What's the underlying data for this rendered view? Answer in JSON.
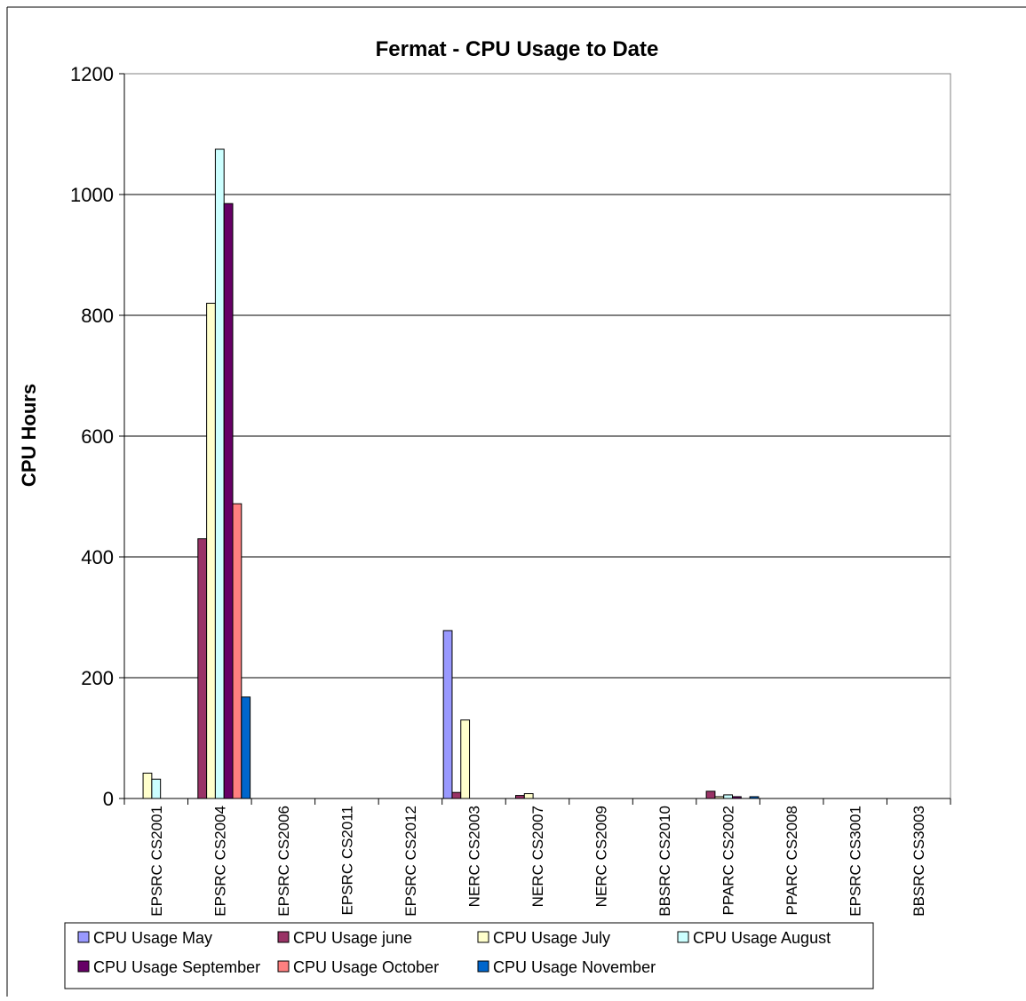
{
  "chart_data": {
    "type": "bar",
    "title": "Fermat - CPU Usage to Date",
    "xlabel": "",
    "ylabel": "CPU Hours",
    "ylim": [
      0,
      1200
    ],
    "yticks": [
      0,
      200,
      400,
      600,
      800,
      1000,
      1200
    ],
    "grid": true,
    "legend_position": "bottom",
    "categories": [
      "EPSRC CS2001",
      "EPSRC CS2004",
      "EPSRC CS2006",
      "EPSRC CS2011",
      "EPSRC CS2012",
      "NERC CS2003",
      "NERC CS2007",
      "NERC CS2009",
      "BBSRC CS2010",
      "PPARC CS2002",
      "PPARC CS2008",
      "EPSRC CS3001",
      "BBSRC CS3003"
    ],
    "series": [
      {
        "name": "CPU Usage May",
        "color": "#9999FF",
        "values": [
          0,
          0,
          0,
          0,
          0,
          278,
          0,
          0,
          0,
          0,
          0,
          0,
          0
        ]
      },
      {
        "name": "CPU Usage june",
        "color": "#993366",
        "values": [
          0,
          430,
          0,
          0,
          0,
          10,
          5,
          0,
          0,
          12,
          0,
          0,
          0
        ]
      },
      {
        "name": "CPU Usage July",
        "color": "#FFFFCC",
        "values": [
          42,
          820,
          0,
          0,
          0,
          130,
          8,
          0,
          0,
          3,
          0,
          0,
          0
        ]
      },
      {
        "name": "CPU Usage August",
        "color": "#CCFFFF",
        "values": [
          32,
          1075,
          0,
          0,
          0,
          0,
          0,
          0,
          0,
          6,
          0,
          0,
          0
        ]
      },
      {
        "name": "CPU Usage September",
        "color": "#660066",
        "values": [
          0,
          985,
          0,
          0,
          0,
          0,
          0,
          0,
          0,
          3,
          0,
          0,
          0
        ]
      },
      {
        "name": "CPU Usage October",
        "color": "#FF8080",
        "values": [
          0,
          488,
          0,
          0,
          0,
          0,
          0,
          0,
          0,
          0,
          0,
          0,
          0
        ]
      },
      {
        "name": "CPU Usage November",
        "color": "#0066CC",
        "values": [
          0,
          168,
          0,
          0,
          0,
          0,
          0,
          0,
          0,
          3,
          0,
          0,
          0
        ]
      }
    ]
  }
}
